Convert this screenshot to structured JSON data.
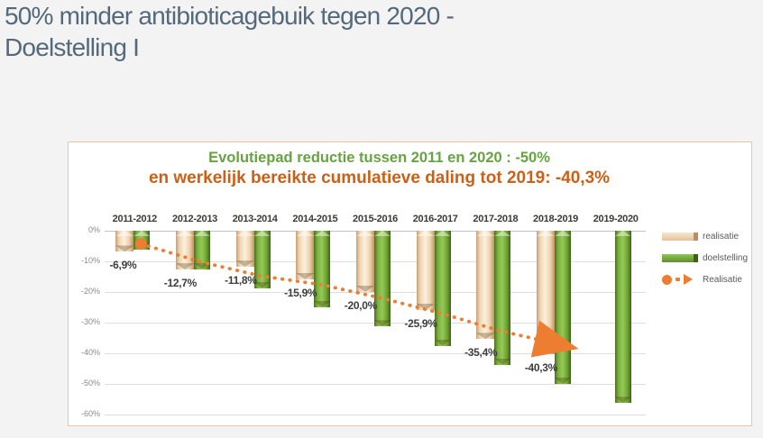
{
  "page": {
    "title_line1": "50% minder antibioticagebuik tegen 2020 -",
    "title_line2": "Doelstelling I"
  },
  "colors": {
    "title_text": "#546a7a",
    "accent_green": "#67a342",
    "accent_orange": "#cd5f16",
    "bar_realisatie": "#f2d8ba",
    "bar_doelstelling": "#77ad3f",
    "line_realisatie": "#ed7d31",
    "card_border": "#f2c49e",
    "gridline": "#dedede"
  },
  "chart_data": {
    "type": "bar",
    "title": "Evolutiepad reductie tussen 2011 en 2020 : -50%",
    "subtitle": "en werkelijk bereikte cumulatieve daling tot 2019: -40,3%",
    "categories": [
      "2011-2012",
      "2012-2013",
      "2013-2014",
      "2014-2015",
      "2015-2016",
      "2016-2017",
      "2017-2018",
      "2018-2019",
      "2019-2020"
    ],
    "series": [
      {
        "name": "realisatie",
        "type": "bar",
        "values": [
          -6.9,
          -12.7,
          -11.8,
          -15.9,
          -20.0,
          -25.9,
          -35.4,
          -40.3,
          null
        ],
        "labels": [
          "-6,9%",
          "-12,7%",
          "-11,8%",
          "-15,9%",
          "-20,0%",
          "-25,9%",
          "-35,4%",
          "-40,3%",
          null
        ]
      },
      {
        "name": "doelstelling",
        "type": "bar",
        "values": [
          -6.25,
          -12.5,
          -18.75,
          -25.0,
          -31.25,
          -37.5,
          -43.75,
          -50.0,
          -56.25
        ]
      },
      {
        "name": "Realisatie",
        "type": "line",
        "values": [
          -4.3,
          -10.2,
          -14.8,
          -17.6,
          -22.0,
          -27.0,
          -32.8,
          -37.3,
          null
        ]
      }
    ],
    "yticks": [
      "0%",
      "-10%",
      "-20%",
      "-30%",
      "-40%",
      "-50%",
      "-60%"
    ],
    "ylim": [
      -60,
      0
    ],
    "grid": true,
    "legend_position": "right",
    "legend": [
      {
        "label": "realisatie",
        "swatch": "tan"
      },
      {
        "label": "doelstelling",
        "swatch": "green"
      },
      {
        "label": "Realisatie",
        "swatch": "line"
      }
    ]
  }
}
